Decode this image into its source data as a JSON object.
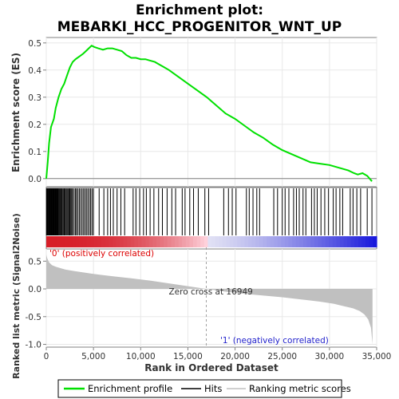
{
  "title_line1": "Enrichment plot:",
  "title_line2": "MEBARKI_HCC_PROGENITOR_WNT_UP",
  "colors": {
    "es_line": "#00e000",
    "hits": "#000000",
    "metric_fill": "#c0c0c0",
    "positive_label": "#dd0000",
    "negative_label": "#2222cc",
    "zero_cross_line": "#a0a0a0",
    "grid": "#e8e8e8"
  },
  "labels": {
    "positive": "'0' (positively correlated)",
    "negative": "'1' (negatively correlated)",
    "zero_cross": "Zero cross at 16949"
  },
  "legend": {
    "enrichment": "Enrichment profile",
    "hits": "Hits",
    "ranking": "Ranking metric scores"
  },
  "chart_data": [
    {
      "type": "line",
      "name": "enrichment-profile",
      "ylabel": "Enrichment score (ES)",
      "xlim": [
        0,
        35000
      ],
      "ylim": [
        -0.03,
        0.52
      ],
      "y_ticks": [
        "0.0",
        "0.1",
        "0.2",
        "0.3",
        "0.4",
        "0.5"
      ],
      "y_tick_values": [
        0,
        0.1,
        0.2,
        0.3,
        0.4,
        0.5
      ],
      "series": [
        {
          "name": "Enrichment profile",
          "x": [
            0,
            150,
            300,
            500,
            800,
            1000,
            1300,
            1600,
            1900,
            2200,
            2500,
            2800,
            3100,
            3500,
            3900,
            4200,
            4500,
            4800,
            5100,
            5500,
            6000,
            6500,
            7000,
            7500,
            8000,
            8500,
            9000,
            9500,
            10000,
            10500,
            11000,
            11500,
            12000,
            12500,
            13000,
            14000,
            15000,
            16000,
            17000,
            18000,
            19000,
            20000,
            21000,
            22000,
            23000,
            24000,
            25000,
            26000,
            27000,
            28000,
            29000,
            30000,
            31000,
            32000,
            32600,
            33000,
            33500,
            34000,
            34500
          ],
          "y": [
            0.0,
            0.06,
            0.13,
            0.19,
            0.22,
            0.26,
            0.3,
            0.33,
            0.35,
            0.38,
            0.41,
            0.43,
            0.44,
            0.45,
            0.46,
            0.47,
            0.48,
            0.49,
            0.485,
            0.48,
            0.475,
            0.48,
            0.48,
            0.475,
            0.47,
            0.455,
            0.445,
            0.445,
            0.44,
            0.44,
            0.435,
            0.43,
            0.42,
            0.41,
            0.4,
            0.375,
            0.35,
            0.325,
            0.3,
            0.27,
            0.24,
            0.22,
            0.195,
            0.17,
            0.15,
            0.125,
            0.105,
            0.09,
            0.075,
            0.06,
            0.055,
            0.05,
            0.04,
            0.03,
            0.02,
            0.015,
            0.02,
            0.01,
            -0.01
          ]
        }
      ]
    },
    {
      "type": "bar",
      "name": "hits",
      "xlim": [
        0,
        35000
      ],
      "series": [
        {
          "name": "Hits",
          "x": [
            20,
            60,
            110,
            160,
            220,
            280,
            340,
            400,
            460,
            520,
            580,
            640,
            700,
            760,
            820,
            880,
            940,
            1000,
            1060,
            1120,
            1180,
            1240,
            1300,
            1380,
            1460,
            1540,
            1620,
            1700,
            1800,
            1900,
            2000,
            2100,
            2200,
            2300,
            2400,
            2500,
            2600,
            2700,
            2800,
            2950,
            3100,
            3200,
            3350,
            3500,
            3650,
            3800,
            3950,
            4100,
            4250,
            4400,
            4550,
            4700,
            4850,
            5000,
            5600,
            6100,
            6500,
            6800,
            7100,
            7500,
            7900,
            8300,
            9200,
            9500,
            9900,
            10300,
            10600,
            11000,
            11400,
            11900,
            12300,
            12800,
            13300,
            13700,
            14400,
            14700,
            15200,
            15600,
            16100,
            16800,
            17200,
            18800,
            19300,
            19700,
            20100,
            21200,
            21500,
            21900,
            22300,
            22600,
            24100,
            24500,
            25000,
            25300,
            25700,
            26200,
            26500,
            26800,
            27200,
            27500,
            28100,
            28400,
            28700,
            29100,
            29500,
            29900,
            30400,
            30700,
            31100,
            31400,
            32200,
            32500,
            32900,
            33300,
            34000,
            34500
          ]
        }
      ]
    },
    {
      "type": "area",
      "name": "ranked-list-metric",
      "xlabel": "Rank in Ordered Dataset",
      "ylabel": "Ranked list metric (Signal2Noise)",
      "xlim": [
        0,
        35000
      ],
      "ylim": [
        -1.05,
        0.72
      ],
      "x_ticks": [
        "0",
        "5,000",
        "10,000",
        "15,000",
        "20,000",
        "25,000",
        "30,000",
        "35,000"
      ],
      "x_tick_values": [
        0,
        5000,
        10000,
        15000,
        20000,
        25000,
        30000,
        35000
      ],
      "y_ticks": [
        "0.5",
        "0.0",
        "-0.5",
        "-1.0"
      ],
      "y_tick_values": [
        0.5,
        0.0,
        -0.5,
        -1.0
      ],
      "zero_cross": 16949,
      "series": [
        {
          "name": "Ranking metric scores",
          "x": [
            0,
            100,
            300,
            600,
            1000,
            2000,
            3000,
            5000,
            7000,
            9000,
            11000,
            13000,
            15000,
            16949,
            19000,
            21000,
            23000,
            25000,
            27000,
            29000,
            30500,
            31500,
            32500,
            33200,
            33700,
            34100,
            34400,
            34560
          ],
          "y": [
            0.62,
            0.55,
            0.48,
            0.43,
            0.4,
            0.35,
            0.32,
            0.27,
            0.23,
            0.19,
            0.15,
            0.1,
            0.05,
            0.0,
            -0.05,
            -0.09,
            -0.12,
            -0.15,
            -0.19,
            -0.23,
            -0.27,
            -0.31,
            -0.35,
            -0.4,
            -0.46,
            -0.55,
            -0.7,
            -1.0
          ]
        }
      ]
    }
  ]
}
